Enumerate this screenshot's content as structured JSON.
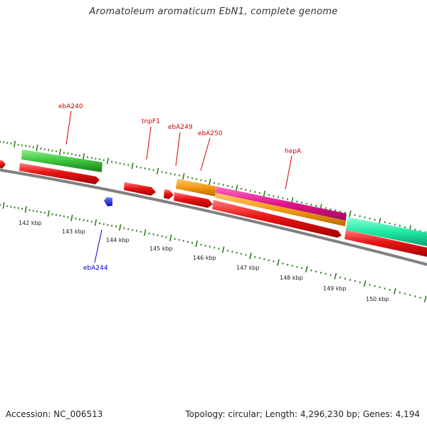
{
  "title": "Aromatoleum aromaticum EbN1, complete genome",
  "footer": {
    "accession": "Accession: NC_006513",
    "topology": "Topology: circular; Length: 4,296,230 bp; Genes: 4,194"
  },
  "colors": {
    "backbone": "#808080",
    "tick": "#2e7d1e",
    "gene_label": "#cc0000",
    "reverse_label": "#0000cc",
    "forward_gene": "#e01010",
    "green_gene": "#3cc43c",
    "orange_gene": "#f39a10",
    "magenta_gene": "#e0158c",
    "teal_gene": "#1ee8a4",
    "reverse_gene": "#1a2ee8"
  },
  "scale_labels": [
    "142 kbp",
    "143 kbp",
    "144 kbp",
    "145 kbp",
    "146 kbp",
    "147 kbp",
    "148 kbp",
    "149 kbp",
    "150 kbp"
  ],
  "gene_labels": [
    {
      "text": "ebA240",
      "strand": "forward"
    },
    {
      "text": "tnpF1",
      "strand": "forward"
    },
    {
      "text": "ebA249",
      "strand": "forward"
    },
    {
      "text": "ebA250",
      "strand": "forward"
    },
    {
      "text": "hepA",
      "strand": "forward"
    },
    {
      "text": "ebA244",
      "strand": "reverse"
    }
  ]
}
